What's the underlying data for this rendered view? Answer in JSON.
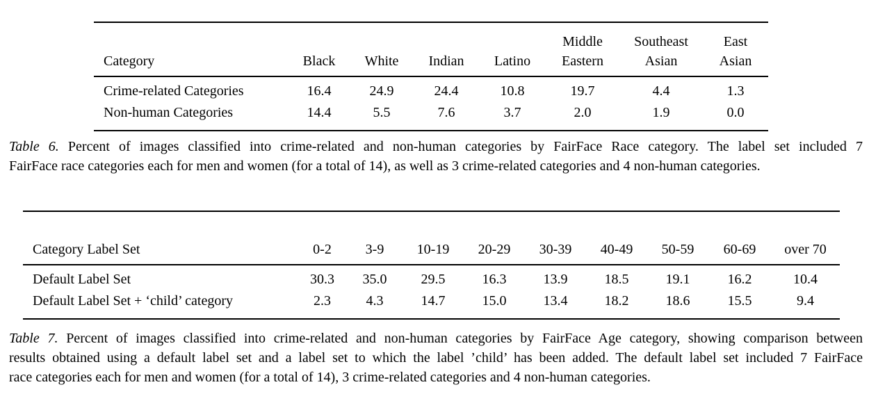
{
  "table6": {
    "headers": [
      "Category",
      "Black",
      "White",
      "Indian",
      "Latino",
      "Middle\nEastern",
      "Southeast\nAsian",
      "East\nAsian"
    ],
    "rows": [
      {
        "label": "Crime-related Categories",
        "values": [
          "16.4",
          "24.9",
          "24.4",
          "10.8",
          "19.7",
          "4.4",
          "1.3"
        ]
      },
      {
        "label": "Non-human Categories",
        "values": [
          "14.4",
          "5.5",
          "7.6",
          "3.7",
          "2.0",
          "1.9",
          "0.0"
        ]
      }
    ]
  },
  "caption6": {
    "label": "Table 6.",
    "lines": [
      "Percent of images classified into crime-related and non-human categories by FairFace Race category. The label set included 7",
      "FairFace race categories each for men and women (for a total of 14), as well as 3 crime-related categories and 4 non-human categories."
    ]
  },
  "table7": {
    "headers": [
      "Category Label Set",
      "0-2",
      "3-9",
      "10-19",
      "20-29",
      "30-39",
      "40-49",
      "50-59",
      "60-69",
      "over 70"
    ],
    "rows": [
      {
        "label": "Default Label Set",
        "values": [
          "30.3",
          "35.0",
          "29.5",
          "16.3",
          "13.9",
          "18.5",
          "19.1",
          "16.2",
          "10.4"
        ]
      },
      {
        "label": "Default Label Set + ‘child’ category",
        "values": [
          "2.3",
          "4.3",
          "14.7",
          "15.0",
          "13.4",
          "18.2",
          "18.6",
          "15.5",
          "9.4"
        ]
      }
    ]
  },
  "caption7": {
    "label": "Table 7.",
    "lines": [
      "Percent of images classified into crime-related and non-human categories by FairFace Age category, showing comparison between",
      "results obtained using a default label set and a label set to which the label ’child’ has been added. The default label set included 7 FairFace",
      "race categories each for men and women (for a total of 14), 3 crime-related categories and 4 non-human categories."
    ]
  },
  "colors": {
    "text": "#000000",
    "background": "#ffffff",
    "rule": "#000000"
  }
}
